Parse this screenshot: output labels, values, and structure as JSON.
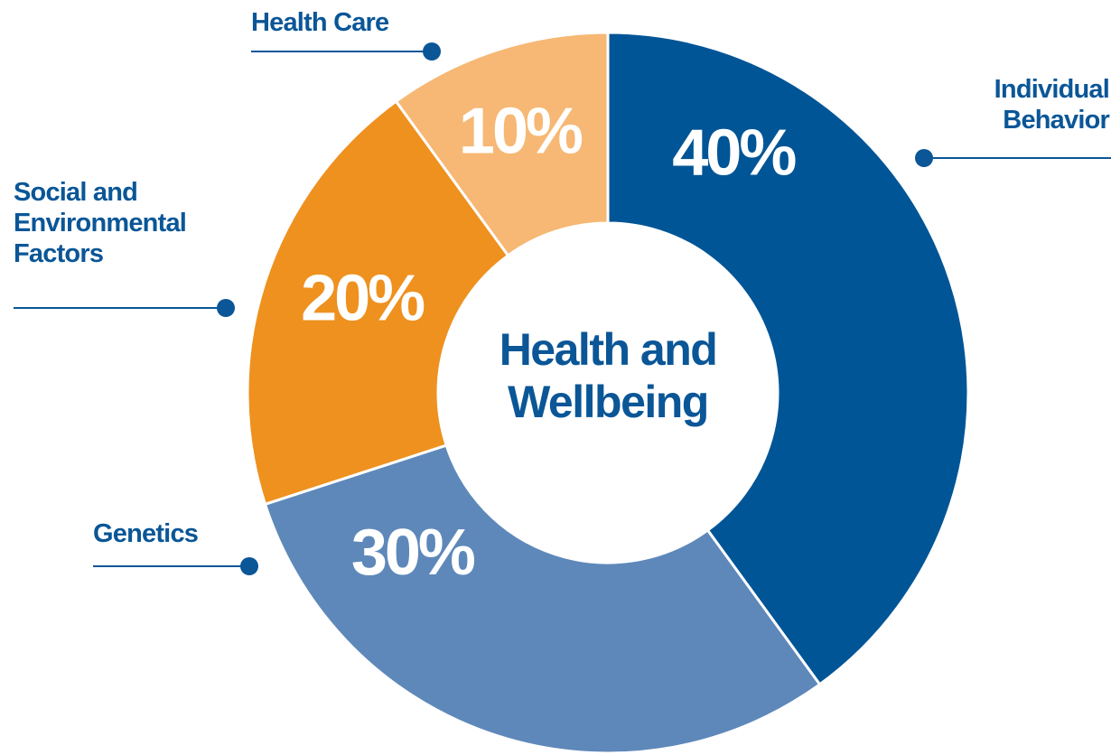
{
  "chart_data": {
    "type": "donut",
    "title": "Health and Wellbeing",
    "categories": [
      "Individual Behavior",
      "Genetics",
      "Social and Environmental Factors",
      "Health Care"
    ],
    "values": [
      40,
      30,
      20,
      10
    ],
    "value_labels": [
      "40%",
      "30%",
      "20%",
      "10%"
    ],
    "colors": [
      "#005596",
      "#5e88ba",
      "#ee911f",
      "#f6b874"
    ]
  }
}
